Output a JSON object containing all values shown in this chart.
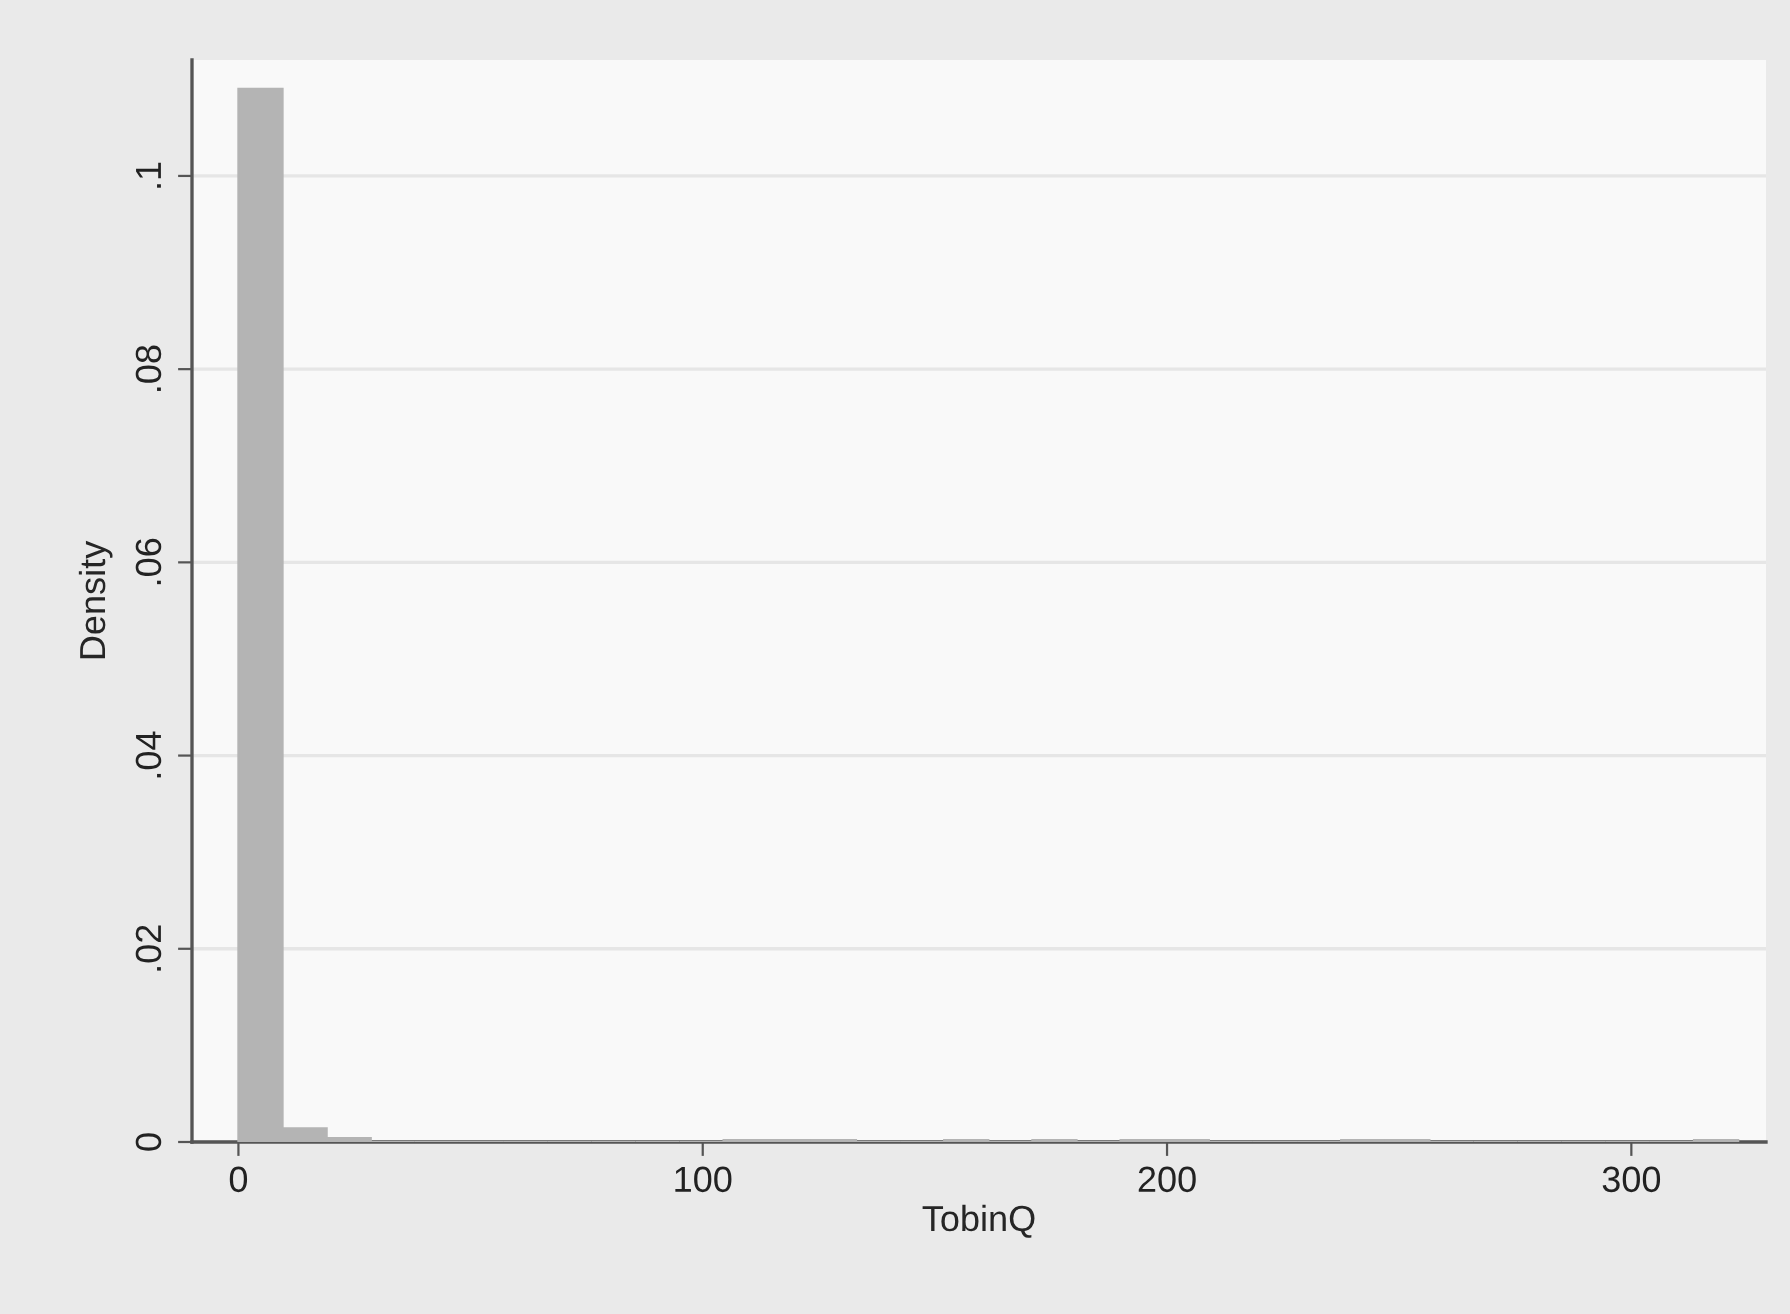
{
  "chart_data": {
    "type": "histogram",
    "xlabel": "TobinQ",
    "ylabel": "Density",
    "bins": [
      0,
      9.5,
      19,
      28.5,
      38,
      47.5,
      57,
      66.5,
      76,
      85.5,
      95,
      104.5,
      114,
      123.5,
      133,
      142.5,
      152,
      161.5,
      171,
      180.5,
      190,
      199.5,
      209,
      218.5,
      228,
      237.5,
      247,
      256.5,
      266,
      275.5,
      285,
      294.5,
      304,
      313.5,
      323
    ],
    "values": [
      0.109,
      0.0014,
      0.0004,
      0,
      0,
      0,
      0,
      0,
      0,
      0,
      0,
      0.0002,
      0.0002,
      0.0002,
      0,
      0,
      0.0002,
      0,
      0.0002,
      0,
      0.0002,
      0.0002,
      0,
      0,
      0,
      0.0002,
      0.0002,
      0,
      0,
      0,
      0,
      0,
      0,
      0.0002
    ],
    "color": "#b4b4b4",
    "xlim": [
      -10,
      329
    ],
    "xticks": [
      0,
      100,
      200,
      300
    ],
    "ylim": [
      0,
      0.112
    ],
    "yticks": [
      {
        "value": 0,
        "label": "0"
      },
      {
        "value": 0.02,
        "label": ".02"
      },
      {
        "value": 0.04,
        "label": ".04"
      },
      {
        "value": 0.06,
        "label": ".06"
      },
      {
        "value": 0.08,
        "label": ".08"
      },
      {
        "value": 0.1,
        "label": ".1"
      }
    ],
    "grid": "y"
  }
}
